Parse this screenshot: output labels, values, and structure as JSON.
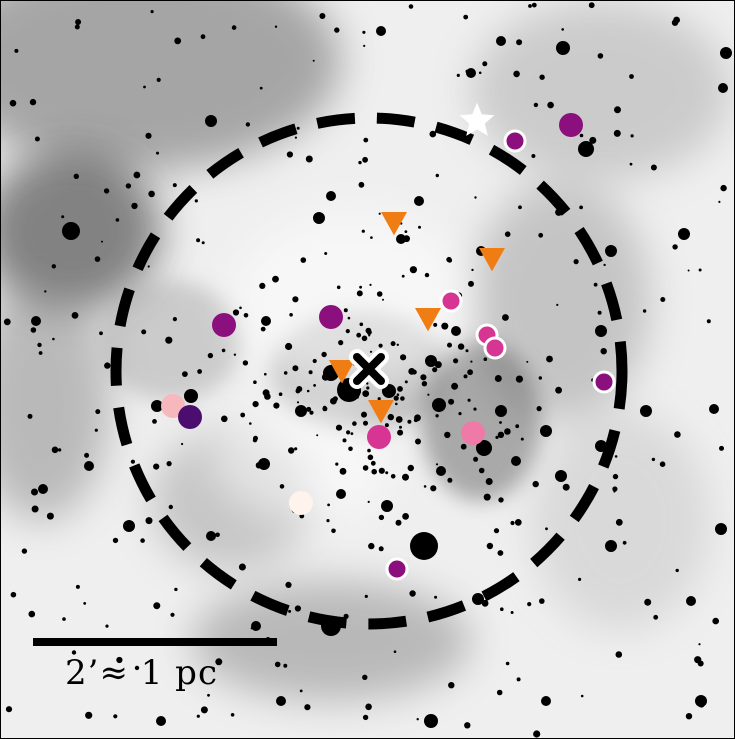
{
  "image": {
    "kind": "grayscale nebula image with overlaid source markers",
    "scale_bar_label": "2’≈ 1 pc",
    "colors": {
      "background": "#efefef",
      "nebula_dark": "#3a3a3a",
      "star": "#000000",
      "triangle": "#f07d13",
      "magenta_dark": "#8b0f7c",
      "indigo": "#4b0d6e",
      "pink_hot": "#d63593",
      "pink_light": "#ef7aa7",
      "pink_pale": "#f7b8bd",
      "cream": "#fff3ee",
      "outline": "#ffffff"
    },
    "marker_groups": [
      {
        "name": "white-star",
        "count": 1
      },
      {
        "name": "black-cross",
        "count": 1
      },
      {
        "name": "orange-triangles",
        "count": 6
      },
      {
        "name": "purple-circles",
        "count": 3
      },
      {
        "name": "purple-circles-outlined",
        "count": 3
      },
      {
        "name": "pink-circles",
        "count": 2
      },
      {
        "name": "pink-circles-outlined",
        "count": 3
      },
      {
        "name": "pale-circles",
        "count": 2
      },
      {
        "name": "indigo-circles",
        "count": 1
      }
    ]
  }
}
